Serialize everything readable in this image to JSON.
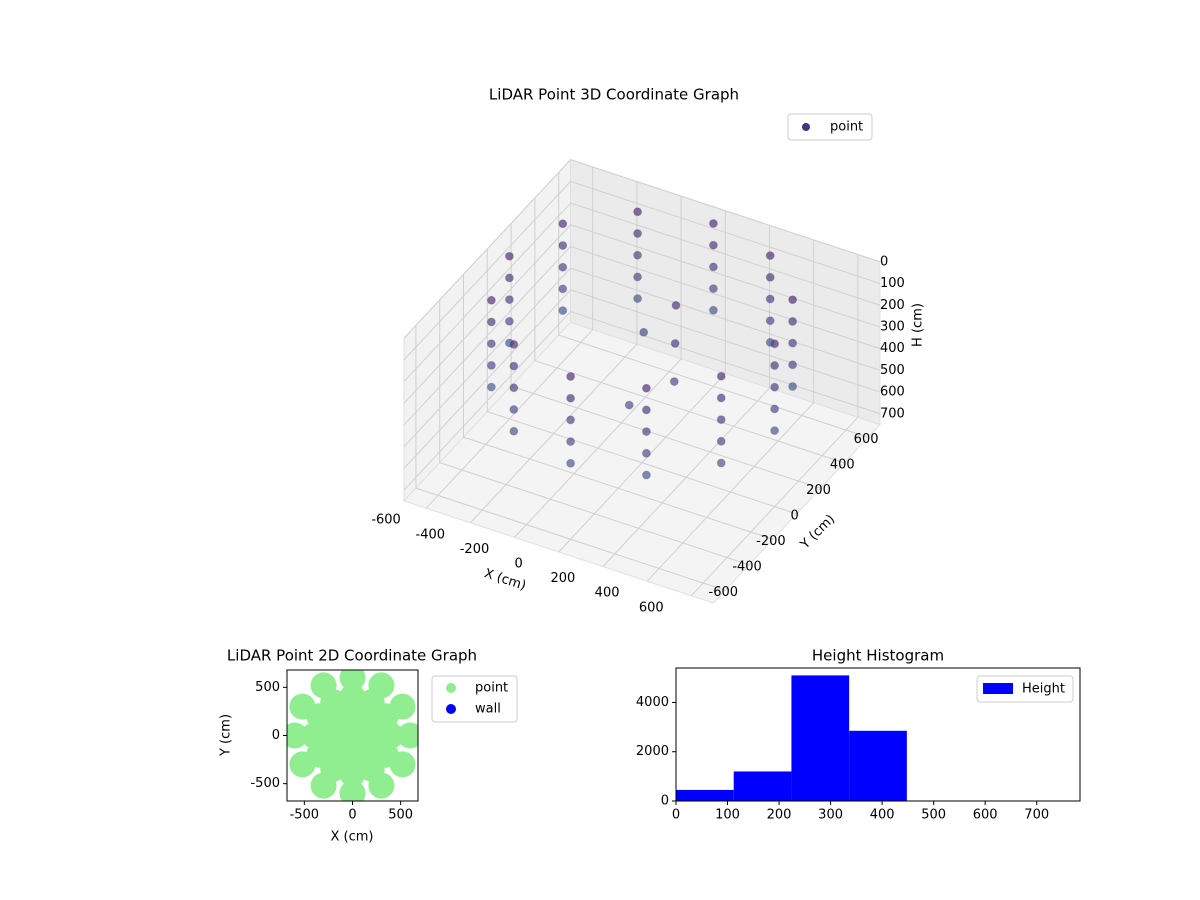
{
  "chart_data": [
    {
      "type": "scatter3d",
      "title": "LiDAR Point 3D Coordinate Graph",
      "xlabel": "X (cm)",
      "ylabel": "Y (cm)",
      "zlabel": "H (cm)",
      "xlim": [
        -700,
        700
      ],
      "ylim": [
        -700,
        700
      ],
      "zlim": [
        0,
        750
      ],
      "z_inverted": true,
      "xticks": [
        -600,
        -400,
        -200,
        0,
        200,
        400,
        600
      ],
      "yticks": [
        -600,
        -400,
        -200,
        0,
        200,
        400,
        600
      ],
      "zticks": [
        0,
        100,
        200,
        300,
        400,
        500,
        600,
        700
      ],
      "grid": true,
      "legend": "upper right",
      "colormap": "viridis",
      "series": [
        {
          "name": "point",
          "color": "#46337e",
          "x": [
            600,
            520,
            300,
            0,
            -300,
            -520,
            -600,
            -520,
            -300,
            0,
            300,
            520,
            600,
            520,
            300,
            0,
            -300,
            -520,
            -600,
            -520,
            -300,
            0,
            300,
            520,
            600,
            520,
            300,
            0,
            -300,
            -520,
            -600,
            -520,
            -300,
            0,
            300,
            520,
            600,
            520,
            300,
            0,
            -300,
            -520,
            -600,
            -520,
            -300,
            0,
            300,
            520,
            600,
            520,
            300,
            0,
            -300,
            -520,
            -600,
            -520,
            -300,
            0,
            300,
            520,
            100,
            150,
            200,
            -100,
            50
          ],
          "y": [
            0,
            300,
            520,
            600,
            520,
            300,
            0,
            -300,
            -520,
            -600,
            -520,
            -300,
            0,
            300,
            520,
            600,
            520,
            300,
            0,
            -300,
            -520,
            -600,
            -520,
            -300,
            0,
            300,
            520,
            600,
            520,
            300,
            0,
            -300,
            -520,
            -600,
            -520,
            -300,
            0,
            300,
            520,
            600,
            520,
            300,
            0,
            -300,
            -520,
            -600,
            -520,
            -300,
            0,
            300,
            520,
            600,
            520,
            300,
            0,
            -300,
            -520,
            -600,
            -520,
            -300,
            100,
            0,
            -100,
            200,
            -200
          ],
          "z": [
            0,
            0,
            0,
            0,
            0,
            0,
            0,
            0,
            0,
            0,
            0,
            0,
            100,
            100,
            100,
            100,
            100,
            100,
            100,
            100,
            100,
            100,
            100,
            100,
            200,
            200,
            200,
            200,
            200,
            200,
            200,
            200,
            200,
            200,
            200,
            200,
            300,
            300,
            300,
            300,
            300,
            300,
            300,
            300,
            300,
            300,
            300,
            300,
            400,
            400,
            400,
            400,
            400,
            400,
            400,
            400,
            400,
            400,
            400,
            400,
            50,
            150,
            250,
            300,
            350
          ]
        }
      ]
    },
    {
      "type": "scatter",
      "title": "LiDAR Point 2D Coordinate Graph",
      "xlabel": "X (cm)",
      "ylabel": "Y (cm)",
      "xlim": [
        -680,
        680
      ],
      "ylim": [
        -680,
        680
      ],
      "xticks": [
        -500,
        0,
        500
      ],
      "yticks": [
        -500,
        0,
        500
      ],
      "legend": "outside upper right",
      "series": [
        {
          "name": "point",
          "color": "#90ee90",
          "x": [
            0,
            200,
            173,
            100,
            0,
            -100,
            -173,
            -200,
            -173,
            -100,
            0,
            100,
            173,
            400,
            346,
            200,
            0,
            -200,
            -346,
            -400,
            -346,
            -200,
            0,
            200,
            346,
            600,
            520,
            300,
            0,
            -300,
            -520,
            -600,
            -520,
            -300,
            0,
            300,
            520
          ],
          "y": [
            0,
            0,
            100,
            173,
            200,
            173,
            100,
            0,
            -100,
            -173,
            -200,
            -173,
            -100,
            0,
            200,
            346,
            400,
            346,
            200,
            0,
            -200,
            -346,
            -400,
            -346,
            -200,
            0,
            300,
            520,
            600,
            520,
            300,
            0,
            -300,
            -520,
            -600,
            -520,
            -300
          ]
        },
        {
          "name": "wall",
          "color": "#0000ff",
          "x": [],
          "y": []
        }
      ]
    },
    {
      "type": "histogram",
      "title": "Height Histogram",
      "bins": [
        0,
        112,
        224,
        336,
        448,
        560,
        672,
        784
      ],
      "counts": [
        450,
        1200,
        5100,
        2850,
        0,
        0,
        0
      ],
      "xlim": [
        0,
        784
      ],
      "ylim": [
        0,
        5400
      ],
      "xticks": [
        0,
        100,
        200,
        300,
        400,
        500,
        600,
        700
      ],
      "yticks": [
        0,
        2000,
        4000
      ],
      "legend": "upper right",
      "series_name": "Height",
      "color": "#0000ff"
    }
  ]
}
